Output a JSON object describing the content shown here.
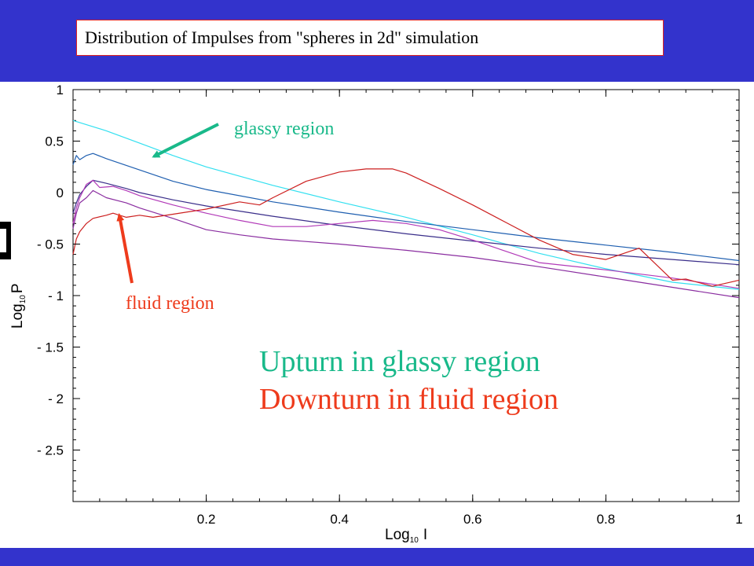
{
  "header": {
    "title": "Distribution of Impulses from \"spheres in 2d\" simulation"
  },
  "colors": {
    "band": "#3333cc",
    "glassy": "#19b98a",
    "fluid": "#ee3b1c",
    "cyan_series": "#33e0f0",
    "blue_series": "#1f5fb0",
    "navy_series": "#3a2e8a",
    "magenta_series": "#b23ab8",
    "purple_series": "#8a2da0",
    "red_series": "#cc1f1f"
  },
  "chart_data": {
    "type": "line",
    "xlabel": {
      "base": "Log",
      "sub": "10",
      "var": "I"
    },
    "ylabel": {
      "base": "Log",
      "sub": "10",
      "var": "P"
    },
    "xlim": [
      0,
      1
    ],
    "ylim": [
      -3,
      1
    ],
    "xticks": [
      {
        "value": 0.2,
        "label": "0.2"
      },
      {
        "value": 0.4,
        "label": "0.4"
      },
      {
        "value": 0.6,
        "label": "0.6"
      },
      {
        "value": 0.8,
        "label": "0.8"
      },
      {
        "value": 1.0,
        "label": "1"
      }
    ],
    "yticks": [
      {
        "value": 1.0,
        "label": "1"
      },
      {
        "value": 0.5,
        "label": "0.5"
      },
      {
        "value": 0.0,
        "label": "0"
      },
      {
        "value": -0.5,
        "label": "- 0.5"
      },
      {
        "value": -1.0,
        "label": "- 1"
      },
      {
        "value": -1.5,
        "label": "- 1.5"
      },
      {
        "value": -2.0,
        "label": "- 2"
      },
      {
        "value": -2.5,
        "label": "- 2.5"
      }
    ],
    "grid": false,
    "series": [
      {
        "color_key": "cyan_series",
        "x": [
          0.0,
          0.01,
          0.05,
          0.1,
          0.15,
          0.2,
          0.3,
          0.4,
          0.5,
          0.6,
          0.7,
          0.8,
          0.9,
          1.0
        ],
        "y": [
          0.7,
          0.68,
          0.6,
          0.48,
          0.36,
          0.25,
          0.07,
          -0.09,
          -0.24,
          -0.41,
          -0.59,
          -0.74,
          -0.87,
          -0.94
        ]
      },
      {
        "color_key": "blue_series",
        "x": [
          0.0,
          0.005,
          0.01,
          0.02,
          0.03,
          0.05,
          0.1,
          0.15,
          0.2,
          0.3,
          0.4,
          0.5,
          0.6,
          0.7,
          0.8,
          0.9,
          1.0
        ],
        "y": [
          0.27,
          0.36,
          0.32,
          0.36,
          0.38,
          0.33,
          0.22,
          0.11,
          0.03,
          -0.09,
          -0.19,
          -0.28,
          -0.36,
          -0.44,
          -0.51,
          -0.58,
          -0.66
        ]
      },
      {
        "color_key": "navy_series",
        "x": [
          0.0,
          0.005,
          0.01,
          0.02,
          0.03,
          0.05,
          0.08,
          0.1,
          0.15,
          0.2,
          0.3,
          0.4,
          0.5,
          0.6,
          0.7,
          0.8,
          0.9,
          1.0
        ],
        "y": [
          -0.2,
          -0.1,
          -0.02,
          0.06,
          0.12,
          0.09,
          0.04,
          0.0,
          -0.07,
          -0.13,
          -0.23,
          -0.32,
          -0.4,
          -0.47,
          -0.54,
          -0.6,
          -0.65,
          -0.7
        ]
      },
      {
        "color_key": "magenta_series",
        "x": [
          0.0,
          0.005,
          0.01,
          0.02,
          0.03,
          0.04,
          0.06,
          0.08,
          0.1,
          0.15,
          0.2,
          0.25,
          0.3,
          0.35,
          0.4,
          0.45,
          0.5,
          0.55,
          0.6,
          0.65,
          0.7,
          0.8,
          0.9,
          1.0
        ],
        "y": [
          -0.3,
          -0.15,
          -0.05,
          0.08,
          0.12,
          0.05,
          0.06,
          0.02,
          -0.03,
          -0.12,
          -0.2,
          -0.27,
          -0.33,
          -0.33,
          -0.3,
          -0.27,
          -0.3,
          -0.36,
          -0.46,
          -0.57,
          -0.68,
          -0.75,
          -0.83,
          -0.93
        ]
      },
      {
        "color_key": "purple_series",
        "x": [
          0.0,
          0.005,
          0.01,
          0.02,
          0.03,
          0.05,
          0.08,
          0.1,
          0.15,
          0.2,
          0.25,
          0.3,
          0.4,
          0.5,
          0.6,
          0.7,
          0.8,
          0.9,
          1.0
        ],
        "y": [
          -0.35,
          -0.2,
          -0.1,
          -0.05,
          0.02,
          -0.05,
          -0.1,
          -0.15,
          -0.25,
          -0.36,
          -0.41,
          -0.45,
          -0.5,
          -0.56,
          -0.63,
          -0.72,
          -0.82,
          -0.92,
          -1.02
        ]
      },
      {
        "color_key": "red_series",
        "x": [
          0.0,
          0.005,
          0.01,
          0.02,
          0.03,
          0.05,
          0.06,
          0.08,
          0.1,
          0.12,
          0.15,
          0.2,
          0.25,
          0.28,
          0.3,
          0.35,
          0.4,
          0.44,
          0.48,
          0.5,
          0.55,
          0.6,
          0.65,
          0.7,
          0.75,
          0.8,
          0.85,
          0.9,
          0.92,
          0.96,
          1.0
        ],
        "y": [
          -0.6,
          -0.45,
          -0.38,
          -0.3,
          -0.25,
          -0.22,
          -0.2,
          -0.24,
          -0.22,
          -0.24,
          -0.21,
          -0.16,
          -0.09,
          -0.12,
          -0.05,
          0.11,
          0.2,
          0.23,
          0.23,
          0.19,
          0.04,
          -0.12,
          -0.29,
          -0.46,
          -0.6,
          -0.65,
          -0.54,
          -0.85,
          -0.84,
          -0.91,
          -0.85
        ]
      }
    ]
  },
  "annotations": {
    "glassy_label": "glassy region",
    "fluid_label": "fluid region",
    "upturn_text": "Upturn in glassy region",
    "downturn_text": "Downturn in fluid region"
  }
}
